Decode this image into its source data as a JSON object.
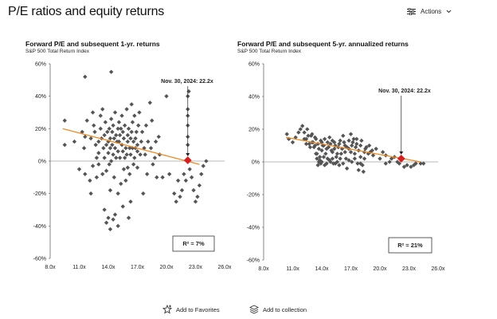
{
  "page": {
    "title": "P/E ratios and equity returns",
    "actions_label": "Actions",
    "actions_icon": "sliders-icon",
    "chevron_icon": "chevron-down-icon"
  },
  "footer": {
    "favorites_label": "Add to Favorites",
    "favorites_icon": "star-plus-icon",
    "collection_label": "Add to collection",
    "collection_icon": "stack-icon"
  },
  "colors": {
    "marker": "#555555",
    "trendline": "#f08a24",
    "highlight": "#d42020",
    "arrow": "#222222"
  },
  "chart_data": [
    {
      "id": "left",
      "type": "scatter",
      "title": "Forward P/E and subsequent 1-yr. returns",
      "subtitle": "S&P 500 Total Return Index",
      "xlabel": "",
      "ylabel": "",
      "xlim": [
        8,
        26
      ],
      "ylim": [
        -60,
        60
      ],
      "xticks": [
        8,
        11,
        14,
        17,
        20,
        23,
        26
      ],
      "xtick_labels": [
        "8.0x",
        "11.0x",
        "14.0x",
        "17.0x",
        "20.0x",
        "23.0x",
        "26.0x"
      ],
      "yticks": [
        -60,
        -40,
        -20,
        0,
        20,
        40,
        60
      ],
      "ytick_labels": [
        "-60%",
        "-40%",
        "-20%",
        "0%",
        "20%",
        "40%",
        "60%"
      ],
      "trendline": {
        "x": [
          9.3,
          23.4
        ],
        "y": [
          20,
          -2
        ]
      },
      "highlight": {
        "x": 22.2,
        "y": 0.5,
        "label": "Nov. 30, 2024: 22.2x"
      },
      "r2_label": "R² = 7%",
      "points": [
        [
          9.5,
          25
        ],
        [
          9.5,
          10
        ],
        [
          10.5,
          12
        ],
        [
          11,
          -5
        ],
        [
          11.3,
          18
        ],
        [
          11.6,
          15
        ],
        [
          11.8,
          25
        ],
        [
          11.6,
          52
        ],
        [
          12.1,
          -12
        ],
        [
          12.2,
          -20
        ],
        [
          12.4,
          30
        ],
        [
          12.5,
          22
        ],
        [
          12.7,
          10
        ],
        [
          13,
          5
        ],
        [
          13.2,
          28
        ],
        [
          13.4,
          32
        ],
        [
          13.6,
          -30
        ],
        [
          13.8,
          -38
        ],
        [
          14,
          -35
        ],
        [
          14.2,
          -42
        ],
        [
          14.5,
          -36
        ],
        [
          14.7,
          -33
        ],
        [
          14.2,
          -18
        ],
        [
          14.3,
          55
        ],
        [
          15.1,
          12
        ],
        [
          15.3,
          20
        ],
        [
          15.6,
          -5
        ],
        [
          15.8,
          -12
        ],
        [
          16,
          16
        ],
        [
          16.2,
          8
        ],
        [
          16.4,
          35
        ],
        [
          16.6,
          -2
        ],
        [
          16.8,
          14
        ],
        [
          17,
          6
        ],
        [
          17.2,
          30
        ],
        [
          17.4,
          12
        ],
        [
          17.6,
          -20
        ],
        [
          17.8,
          4
        ],
        [
          18,
          -8
        ],
        [
          18.3,
          36
        ],
        [
          18.5,
          25
        ],
        [
          18.8,
          2
        ],
        [
          19,
          -10
        ],
        [
          19.2,
          15
        ],
        [
          19.6,
          -10
        ],
        [
          20,
          40
        ],
        [
          20.3,
          -8
        ],
        [
          20.8,
          -20
        ],
        [
          21,
          -25
        ],
        [
          21.2,
          -12
        ],
        [
          21.4,
          -22
        ],
        [
          21.6,
          -18
        ],
        [
          21.8,
          -8
        ],
        [
          22,
          -12
        ],
        [
          22.2,
          32
        ],
        [
          22.2,
          28
        ],
        [
          22.2,
          22
        ],
        [
          22.2,
          15
        ],
        [
          22.2,
          10
        ],
        [
          22.2,
          40
        ],
        [
          22.3,
          43
        ],
        [
          22.4,
          -5
        ],
        [
          22.6,
          -10
        ],
        [
          22.8,
          -18
        ],
        [
          23,
          -25
        ],
        [
          23.2,
          -22
        ],
        [
          23.4,
          -15
        ],
        [
          23.6,
          -8
        ],
        [
          23.8,
          -3
        ],
        [
          24.1,
          0
        ],
        [
          11.5,
          8
        ],
        [
          11.6,
          -8
        ],
        [
          12.2,
          14
        ],
        [
          12.4,
          -3
        ],
        [
          12.6,
          18
        ],
        [
          12.8,
          2
        ],
        [
          12.8,
          -10
        ],
        [
          13,
          12
        ],
        [
          13,
          -2
        ],
        [
          13.2,
          20
        ],
        [
          13.3,
          14
        ],
        [
          13.4,
          -8
        ],
        [
          13.5,
          8
        ],
        [
          13.6,
          2
        ],
        [
          13.6,
          16
        ],
        [
          13.7,
          24
        ],
        [
          13.8,
          10
        ],
        [
          13.8,
          -6
        ],
        [
          13.9,
          18
        ],
        [
          14,
          5
        ],
        [
          14,
          12
        ],
        [
          14.1,
          20
        ],
        [
          14.1,
          -2
        ],
        [
          14.2,
          8
        ],
        [
          14.2,
          14
        ],
        [
          14.3,
          26
        ],
        [
          14.3,
          0
        ],
        [
          14.4,
          10
        ],
        [
          14.4,
          18
        ],
        [
          14.5,
          4
        ],
        [
          14.5,
          22
        ],
        [
          14.6,
          14
        ],
        [
          14.6,
          -10
        ],
        [
          14.7,
          8
        ],
        [
          14.7,
          30
        ],
        [
          14.8,
          16
        ],
        [
          14.8,
          2
        ],
        [
          14.9,
          12
        ],
        [
          15,
          20
        ],
        [
          15,
          6
        ],
        [
          15,
          -20
        ],
        [
          15.1,
          24
        ],
        [
          15.2,
          2
        ],
        [
          15.2,
          16
        ],
        [
          15.3,
          -14
        ],
        [
          15.4,
          10
        ],
        [
          15.4,
          28
        ],
        [
          15.5,
          6
        ],
        [
          15.5,
          18
        ],
        [
          15.6,
          14
        ],
        [
          15.7,
          2
        ],
        [
          15.7,
          22
        ],
        [
          15.8,
          8
        ],
        [
          15.9,
          32
        ],
        [
          15.9,
          4
        ],
        [
          16,
          12
        ],
        [
          16,
          -4
        ],
        [
          16.1,
          20
        ],
        [
          16.2,
          -8
        ],
        [
          16.3,
          14
        ],
        [
          16.3,
          4
        ],
        [
          16.4,
          18
        ],
        [
          16.5,
          8
        ],
        [
          16.5,
          24
        ],
        [
          16.6,
          12
        ],
        [
          16.7,
          2
        ],
        [
          16.7,
          28
        ],
        [
          16.8,
          8
        ],
        [
          16.9,
          18
        ],
        [
          17,
          10
        ],
        [
          17,
          -4
        ],
        [
          17.1,
          22
        ],
        [
          17.3,
          4
        ],
        [
          17.5,
          18
        ],
        [
          17.7,
          8
        ],
        [
          17.9,
          22
        ],
        [
          18.1,
          12
        ],
        [
          18.4,
          8
        ],
        [
          18.6,
          -2
        ],
        [
          18.9,
          12
        ],
        [
          19.3,
          4
        ],
        [
          16.3,
          -25
        ],
        [
          16.1,
          -35
        ],
        [
          15.5,
          -28
        ],
        [
          15,
          -40
        ]
      ]
    },
    {
      "id": "right",
      "type": "scatter",
      "title": "Forward P/E and subsequent 5-yr. annualized returns",
      "subtitle": "S&P 500 Total Return Index",
      "xlabel": "",
      "ylabel": "",
      "xlim": [
        8,
        26
      ],
      "ylim": [
        -60,
        60
      ],
      "xticks": [
        8,
        11,
        14,
        17,
        20,
        23,
        26
      ],
      "xtick_labels": [
        "8.0x",
        "11.0x",
        "14.0x",
        "17.0x",
        "20.0x",
        "23.0x",
        "26.0x"
      ],
      "yticks": [
        -60,
        -40,
        -20,
        0,
        20,
        40,
        60
      ],
      "ytick_labels": [
        "-60%",
        "-40%",
        "-20%",
        "0%",
        "20%",
        "40%",
        "60%"
      ],
      "trendline": {
        "x": [
          10.3,
          24.2
        ],
        "y": [
          15,
          0
        ]
      },
      "highlight": {
        "x": 22.2,
        "y": 2,
        "label": "Nov. 30, 2024: 22.2x"
      },
      "r2_label": "R² = 21%",
      "points": [
        [
          10.4,
          17
        ],
        [
          10.6,
          14
        ],
        [
          11,
          12
        ],
        [
          11.3,
          15
        ],
        [
          11.6,
          18
        ],
        [
          11.8,
          20
        ],
        [
          12,
          22
        ],
        [
          12.2,
          18
        ],
        [
          12.4,
          14
        ],
        [
          12.5,
          20
        ],
        [
          12.7,
          11
        ],
        [
          12.9,
          16
        ],
        [
          13,
          12
        ],
        [
          13.2,
          9
        ],
        [
          13.3,
          15
        ],
        [
          13.4,
          5
        ],
        [
          13.5,
          2
        ],
        [
          13.6,
          -2
        ],
        [
          13.7,
          0
        ],
        [
          13.8,
          3
        ],
        [
          13.9,
          -1
        ],
        [
          14,
          12
        ],
        [
          14.2,
          10
        ],
        [
          14.3,
          -2
        ],
        [
          14.5,
          8
        ],
        [
          14.6,
          2
        ],
        [
          14.8,
          15
        ],
        [
          14.9,
          0
        ],
        [
          15,
          7
        ],
        [
          15.2,
          -1
        ],
        [
          15.3,
          12
        ],
        [
          15.5,
          3
        ],
        [
          15.7,
          9
        ],
        [
          15.8,
          -2
        ],
        [
          16,
          5
        ],
        [
          16.2,
          16
        ],
        [
          16.4,
          10
        ],
        [
          16.6,
          -4
        ],
        [
          16.8,
          8
        ],
        [
          17,
          17
        ],
        [
          17.2,
          12
        ],
        [
          17.4,
          5
        ],
        [
          17.6,
          14
        ],
        [
          17.8,
          -5
        ],
        [
          18,
          3
        ],
        [
          18.2,
          -2
        ],
        [
          18.3,
          -6
        ],
        [
          18.5,
          8
        ],
        [
          18.8,
          5
        ],
        [
          19,
          6
        ],
        [
          19.3,
          4
        ],
        [
          19.6,
          8
        ],
        [
          20,
          2
        ],
        [
          20.3,
          6
        ],
        [
          20.6,
          4
        ],
        [
          21,
          0
        ],
        [
          21.5,
          3
        ],
        [
          22,
          -1
        ],
        [
          22.8,
          -2
        ],
        [
          23.2,
          -3
        ],
        [
          23.7,
          -1
        ],
        [
          24.2,
          -1
        ],
        [
          12.2,
          14
        ],
        [
          12.4,
          11
        ],
        [
          12.6,
          16
        ],
        [
          12.8,
          9
        ],
        [
          13,
          17
        ],
        [
          13.1,
          12
        ],
        [
          13.3,
          10
        ],
        [
          13.4,
          14
        ],
        [
          13.6,
          11
        ],
        [
          13.7,
          8
        ],
        [
          13.9,
          13
        ],
        [
          14,
          7
        ],
        [
          14.1,
          10
        ],
        [
          14.3,
          14
        ],
        [
          14.4,
          5
        ],
        [
          14.6,
          12
        ],
        [
          14.7,
          9
        ],
        [
          14.9,
          11
        ],
        [
          15.1,
          6
        ],
        [
          15.1,
          13
        ],
        [
          15.3,
          8
        ],
        [
          15.4,
          10
        ],
        [
          15.6,
          5
        ],
        [
          15.8,
          11
        ],
        [
          15.9,
          13
        ],
        [
          16.1,
          8
        ],
        [
          16.3,
          12
        ],
        [
          16.4,
          6
        ],
        [
          16.6,
          9
        ],
        [
          16.8,
          13
        ],
        [
          17,
          6
        ],
        [
          17.1,
          10
        ],
        [
          17.3,
          14
        ],
        [
          17.5,
          9
        ],
        [
          17.6,
          11
        ],
        [
          17.8,
          7
        ],
        [
          18,
          10
        ],
        [
          18.1,
          13
        ],
        [
          18.4,
          6
        ],
        [
          18.6,
          9
        ],
        [
          18.9,
          10
        ],
        [
          19.2,
          7
        ],
        [
          13.5,
          5
        ],
        [
          13.8,
          1
        ],
        [
          14,
          0
        ],
        [
          14.2,
          3
        ],
        [
          14.5,
          -1
        ],
        [
          14.8,
          1
        ],
        [
          15.1,
          2
        ],
        [
          15.4,
          -1
        ],
        [
          15.6,
          0
        ],
        [
          15.9,
          2
        ],
        [
          16.2,
          -1
        ],
        [
          16.5,
          2
        ],
        [
          16.8,
          1
        ],
        [
          17.1,
          0
        ],
        [
          17.4,
          2
        ],
        [
          17.7,
          -1
        ],
        [
          18,
          -1
        ],
        [
          18.4,
          2
        ],
        [
          21.2,
          2
        ],
        [
          21.8,
          0
        ],
        [
          23.5,
          -2
        ],
        [
          24.5,
          -1
        ],
        [
          22.5,
          -3
        ],
        [
          20.6,
          -1
        ]
      ]
    }
  ]
}
